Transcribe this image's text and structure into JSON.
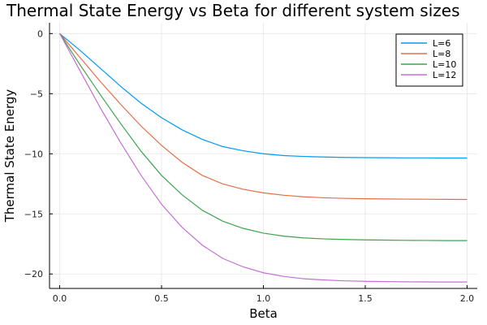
{
  "chart_data": {
    "type": "line",
    "title": "Thermal State Energy vs Beta for different system sizes",
    "xlabel": "Beta",
    "ylabel": "Thermal State Energy",
    "xlim": [
      -0.05,
      2.05
    ],
    "ylim": [
      -21.2,
      0.9
    ],
    "xticks": [
      0.0,
      0.5,
      1.0,
      1.5,
      2.0
    ],
    "xtick_labels": [
      "0.0",
      "0.5",
      "1.0",
      "1.5",
      "2.0"
    ],
    "yticks": [
      0,
      -5,
      -10,
      -15,
      -20
    ],
    "ytick_labels": [
      "0",
      "−5",
      "−10",
      "−15",
      "−20"
    ],
    "grid": true,
    "legend_position": "top-right",
    "x": [
      0.0,
      0.1,
      0.2,
      0.3,
      0.4,
      0.5,
      0.6,
      0.7,
      0.8,
      0.9,
      1.0,
      1.1,
      1.2,
      1.3,
      1.4,
      1.5,
      1.6,
      1.7,
      1.8,
      1.9,
      2.0
    ],
    "series": [
      {
        "name": "L=6",
        "color": "#009AFA",
        "values": [
          0.0,
          -1.4,
          -2.9,
          -4.4,
          -5.8,
          -7.0,
          -8.0,
          -8.8,
          -9.4,
          -9.75,
          -10.0,
          -10.15,
          -10.22,
          -10.27,
          -10.3,
          -10.32,
          -10.33,
          -10.34,
          -10.34,
          -10.35,
          -10.35
        ]
      },
      {
        "name": "L=8",
        "color": "#E36F47",
        "values": [
          0.0,
          -2.0,
          -4.0,
          -5.9,
          -7.7,
          -9.3,
          -10.7,
          -11.8,
          -12.5,
          -12.95,
          -13.25,
          -13.45,
          -13.58,
          -13.66,
          -13.71,
          -13.74,
          -13.76,
          -13.77,
          -13.78,
          -13.79,
          -13.8
        ]
      },
      {
        "name": "L=10",
        "color": "#3EA44E",
        "values": [
          0.0,
          -2.6,
          -5.1,
          -7.5,
          -9.8,
          -11.8,
          -13.4,
          -14.7,
          -15.6,
          -16.2,
          -16.6,
          -16.85,
          -17.0,
          -17.08,
          -17.13,
          -17.16,
          -17.18,
          -17.2,
          -17.21,
          -17.22,
          -17.22
        ]
      },
      {
        "name": "L=12",
        "color": "#C271D2",
        "values": [
          0.0,
          -3.1,
          -6.2,
          -9.1,
          -11.8,
          -14.2,
          -16.1,
          -17.6,
          -18.7,
          -19.4,
          -19.9,
          -20.2,
          -20.4,
          -20.5,
          -20.57,
          -20.61,
          -20.63,
          -20.65,
          -20.66,
          -20.67,
          -20.67
        ]
      }
    ]
  }
}
